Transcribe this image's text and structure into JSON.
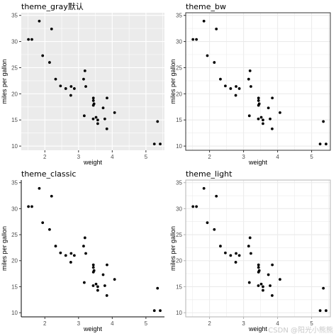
{
  "chart_data": [
    {
      "type": "scatter",
      "title": "theme_gray默认",
      "theme": "gray",
      "xlabel": "weight",
      "ylabel": "miles per gallon",
      "xlim": [
        1.3,
        5.55
      ],
      "ylim": [
        9.2,
        35.5
      ],
      "xticks": [
        2,
        3,
        4,
        5
      ],
      "yticks": [
        10,
        15,
        20,
        25,
        30,
        35
      ],
      "grid": true,
      "x": [
        2.62,
        2.875,
        2.32,
        3.215,
        3.44,
        3.46,
        3.57,
        3.19,
        3.15,
        3.44,
        3.44,
        4.07,
        3.73,
        3.78,
        5.25,
        5.424,
        5.345,
        2.2,
        1.615,
        1.835,
        2.465,
        3.52,
        3.435,
        3.84,
        3.845,
        1.935,
        2.14,
        1.513,
        3.17,
        2.77,
        3.57,
        2.78
      ],
      "y": [
        21.0,
        21.0,
        22.8,
        21.4,
        18.7,
        18.1,
        14.3,
        24.4,
        22.8,
        19.2,
        17.8,
        16.4,
        17.3,
        15.2,
        10.4,
        10.4,
        14.7,
        32.4,
        30.4,
        33.9,
        21.5,
        15.5,
        15.2,
        13.3,
        19.2,
        27.3,
        26.0,
        30.4,
        15.8,
        19.7,
        15.0,
        21.4
      ]
    },
    {
      "type": "scatter",
      "title": "theme_bw",
      "theme": "bw",
      "xlabel": "weight",
      "ylabel": "miles per gallon",
      "xlim": [
        1.3,
        5.55
      ],
      "ylim": [
        9.2,
        35.5
      ],
      "xticks": [
        2,
        3,
        4,
        5
      ],
      "yticks": [
        10,
        15,
        20,
        25,
        30,
        35
      ],
      "grid": true,
      "x": [
        2.62,
        2.875,
        2.32,
        3.215,
        3.44,
        3.46,
        3.57,
        3.19,
        3.15,
        3.44,
        3.44,
        4.07,
        3.73,
        3.78,
        5.25,
        5.424,
        5.345,
        2.2,
        1.615,
        1.835,
        2.465,
        3.52,
        3.435,
        3.84,
        3.845,
        1.935,
        2.14,
        1.513,
        3.17,
        2.77,
        3.57,
        2.78
      ],
      "y": [
        21.0,
        21.0,
        22.8,
        21.4,
        18.7,
        18.1,
        14.3,
        24.4,
        22.8,
        19.2,
        17.8,
        16.4,
        17.3,
        15.2,
        10.4,
        10.4,
        14.7,
        32.4,
        30.4,
        33.9,
        21.5,
        15.5,
        15.2,
        13.3,
        19.2,
        27.3,
        26.0,
        30.4,
        15.8,
        19.7,
        15.0,
        21.4
      ]
    },
    {
      "type": "scatter",
      "title": "theme_classic",
      "theme": "classic",
      "xlabel": "weight",
      "ylabel": "miles per gallon",
      "xlim": [
        1.3,
        5.55
      ],
      "ylim": [
        9.2,
        35.5
      ],
      "xticks": [
        2,
        3,
        4,
        5
      ],
      "yticks": [
        10,
        15,
        20,
        25,
        30,
        35
      ],
      "grid": false,
      "x": [
        2.62,
        2.875,
        2.32,
        3.215,
        3.44,
        3.46,
        3.57,
        3.19,
        3.15,
        3.44,
        3.44,
        4.07,
        3.73,
        3.78,
        5.25,
        5.424,
        5.345,
        2.2,
        1.615,
        1.835,
        2.465,
        3.52,
        3.435,
        3.84,
        3.845,
        1.935,
        2.14,
        1.513,
        3.17,
        2.77,
        3.57,
        2.78
      ],
      "y": [
        21.0,
        21.0,
        22.8,
        21.4,
        18.7,
        18.1,
        14.3,
        24.4,
        22.8,
        19.2,
        17.8,
        16.4,
        17.3,
        15.2,
        10.4,
        10.4,
        14.7,
        32.4,
        30.4,
        33.9,
        21.5,
        15.5,
        15.2,
        13.3,
        19.2,
        27.3,
        26.0,
        30.4,
        15.8,
        19.7,
        15.0,
        21.4
      ]
    },
    {
      "type": "scatter",
      "title": "theme_light",
      "theme": "light",
      "xlabel": "weight",
      "ylabel": "miles per gallon",
      "xlim": [
        1.3,
        5.55
      ],
      "ylim": [
        9.2,
        35.5
      ],
      "xticks": [
        2,
        3,
        4,
        5
      ],
      "yticks": [
        10,
        15,
        20,
        25,
        30,
        35
      ],
      "grid": true,
      "x": [
        2.62,
        2.875,
        2.32,
        3.215,
        3.44,
        3.46,
        3.57,
        3.19,
        3.15,
        3.44,
        3.44,
        4.07,
        3.73,
        3.78,
        5.25,
        5.424,
        5.345,
        2.2,
        1.615,
        1.835,
        2.465,
        3.52,
        3.435,
        3.84,
        3.845,
        1.935,
        2.14,
        1.513,
        3.17,
        2.77,
        3.57,
        2.78
      ],
      "y": [
        21.0,
        21.0,
        22.8,
        21.4,
        18.7,
        18.1,
        14.3,
        24.4,
        22.8,
        19.2,
        17.8,
        16.4,
        17.3,
        15.2,
        10.4,
        10.4,
        14.7,
        32.4,
        30.4,
        33.9,
        21.5,
        15.5,
        15.2,
        13.3,
        19.2,
        27.3,
        26.0,
        30.4,
        15.8,
        19.7,
        15.0,
        21.4
      ]
    }
  ],
  "watermark": "CSDN @阳光小熊熊",
  "colors": {
    "point": "#000000",
    "gray_panel_bg": "#ebebeb",
    "gray_grid": "#ffffff",
    "light_grid": "#ebebeb",
    "axis_text": "#4d4d4d",
    "watermark_text": "#c9c9c9"
  }
}
